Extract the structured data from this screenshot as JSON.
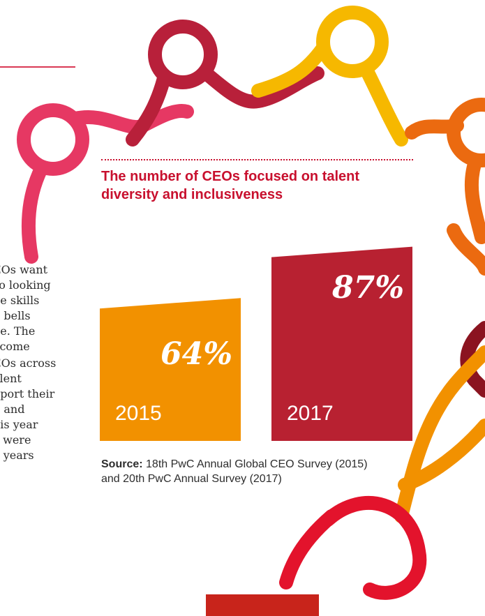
{
  "decor": {
    "colors": {
      "pink": "#e63863",
      "crimson": "#b8203a",
      "yellow": "#f6b800",
      "orange": "#eb6a10",
      "amber": "#f29100",
      "red": "#e3132c",
      "dark_red": "#8b1420"
    }
  },
  "body": {
    "paragraph1_lines": [
      "EOs want",
      "so looking",
      "ne skills",
      "n bells",
      "be. The",
      "ecome"
    ],
    "paragraph2_lines": [
      "EOs across",
      "alent",
      "pport their",
      "n and",
      "his year",
      "y were",
      "o years"
    ]
  },
  "chart_data": {
    "type": "bar",
    "title": "The number of CEOs focused on talent diversity and inclusiveness",
    "categories": [
      "2015",
      "2017"
    ],
    "values": [
      64,
      87
    ],
    "value_labels": [
      "64%",
      "87%"
    ],
    "unit": "%",
    "colors": [
      "#f29100",
      "#b82131"
    ],
    "ylim": [
      0,
      100
    ],
    "grid": false
  },
  "source": {
    "label": "Source:",
    "text": "18th PwC Annual Global CEO Survey (2015) and 20th PwC Annual Survey (2017)"
  }
}
